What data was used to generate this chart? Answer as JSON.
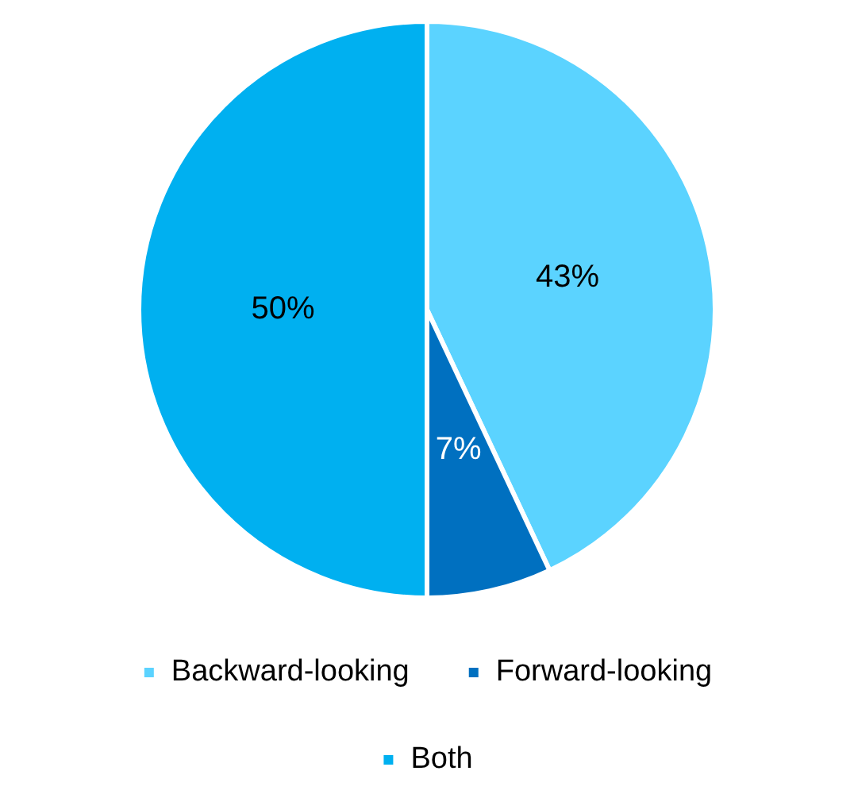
{
  "chart_data": {
    "type": "pie",
    "categories": [
      "Backward-looking",
      "Forward-looking",
      "Both"
    ],
    "values": [
      43,
      7,
      50
    ],
    "colors": [
      "#5bd3ff",
      "#0070c0",
      "#00b0f0"
    ],
    "value_labels": [
      "43%",
      "7%",
      "50%"
    ],
    "legend": "bottom"
  }
}
